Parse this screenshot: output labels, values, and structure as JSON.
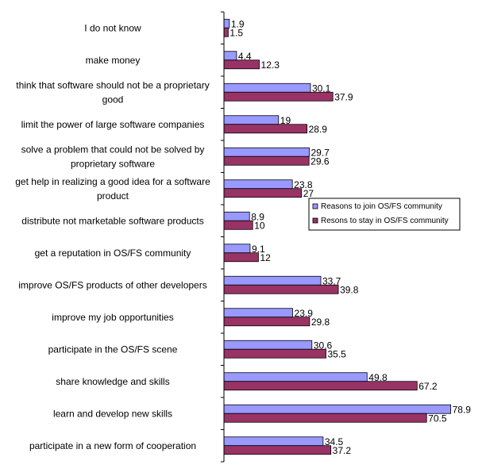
{
  "chart_data": {
    "type": "bar",
    "orientation": "horizontal",
    "title": "",
    "xlabel": "",
    "ylabel": "",
    "xlim": [
      0,
      80
    ],
    "grid": false,
    "legend_position": "right-middle",
    "categories": [
      [
        "I do not know"
      ],
      [
        "make money"
      ],
      [
        "think that software should not be a proprietary",
        "good"
      ],
      [
        "limit the power of large software companies"
      ],
      [
        "solve a problem that could not be solved by",
        "proprietary software"
      ],
      [
        "get help in realizing a good idea for a software",
        "product"
      ],
      [
        "distribute not marketable software products"
      ],
      [
        "get a reputation in OS/FS community"
      ],
      [
        "improve OS/FS products of other developers"
      ],
      [
        "improve my job opportunities"
      ],
      [
        "participate in the OS/FS scene"
      ],
      [
        "share knowledge and skills"
      ],
      [
        "learn and develop new skills"
      ],
      [
        "participate in a new form of cooperation"
      ]
    ],
    "series": [
      {
        "name": "Reasons to join OS/FS community",
        "color": "#9999ff",
        "values": [
          1.9,
          4.4,
          30.1,
          19,
          29.7,
          23.8,
          8.9,
          9.1,
          33.7,
          23.9,
          30.6,
          49.8,
          78.9,
          34.5
        ]
      },
      {
        "name": "Resons to stay in OS/FS community",
        "color": "#993366",
        "values": [
          1.5,
          12.3,
          37.9,
          28.9,
          29.6,
          27,
          10,
          12,
          39.8,
          29.8,
          35.5,
          67.2,
          70.5,
          37.2
        ]
      }
    ]
  }
}
